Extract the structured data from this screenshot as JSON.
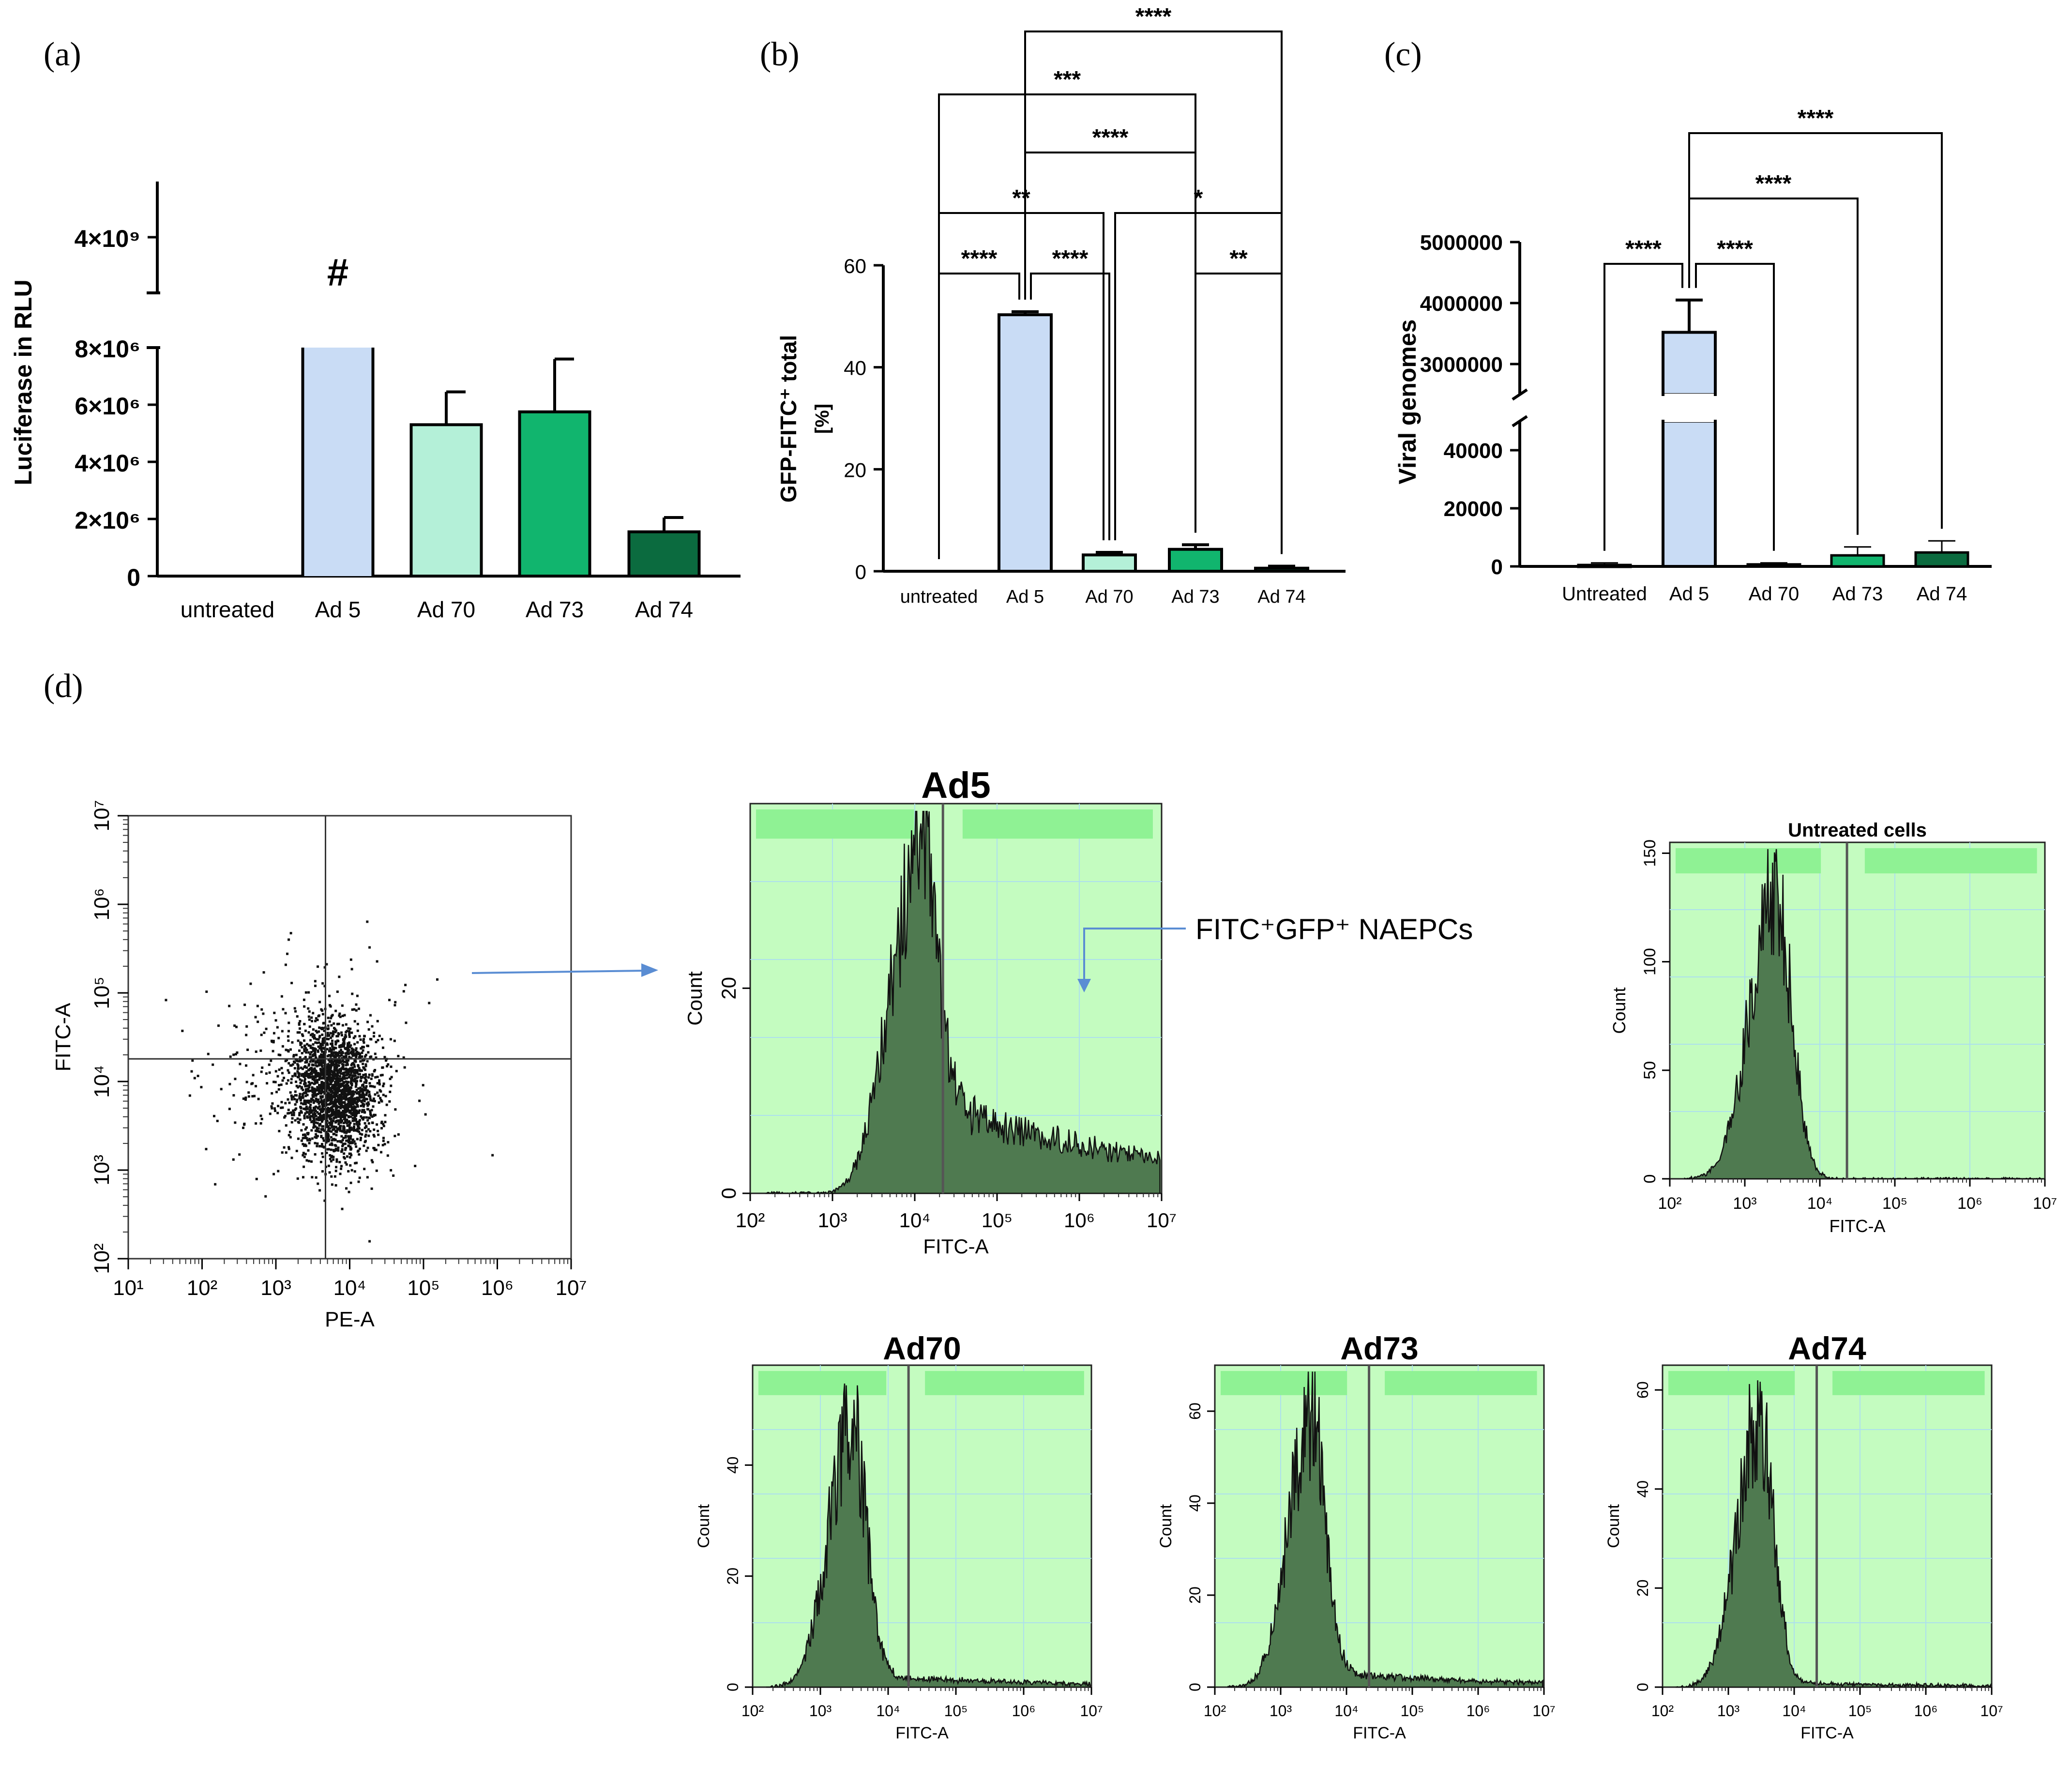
{
  "panel_labels": [
    "(a)",
    "(b)",
    "(c)",
    "(d)"
  ],
  "colors": {
    "untreated": "#e8776b",
    "ad5": "#c9dcf5",
    "ad70": "#b4f0d8",
    "ad73": "#11b56e",
    "ad74": "#0b6b3f",
    "hist_bg": "#c4fcc0",
    "hist_band": "#8ff294",
    "hist_fill": "#4f7a50",
    "grid": "#ade0ec",
    "annot_arrow": "#5a8dd3"
  },
  "chart_data": [
    {
      "id": "a",
      "type": "bar",
      "categories": [
        "untreated",
        "Ad 5",
        "Ad 70",
        "Ad 73",
        "Ad 74"
      ],
      "values": [
        0,
        4000000000,
        5300000,
        5750000,
        1550000
      ],
      "errors": [
        0,
        0,
        1150000,
        1850000,
        500000
      ],
      "ylabel": "Luciferase in RLU",
      "lower_ylim": [
        0,
        8000000
      ],
      "upper_ylim": [
        3800000000,
        4200000000
      ],
      "lower_ticks": [
        {
          "v": 0,
          "l": "0"
        },
        {
          "v": 2000000,
          "l": "2×10⁶"
        },
        {
          "v": 4000000,
          "l": "4×10⁶"
        },
        {
          "v": 6000000,
          "l": "6×10⁶"
        },
        {
          "v": 8000000,
          "l": "8×10⁶"
        }
      ],
      "upper_ticks": [
        {
          "v": 4000000000,
          "l": "4×10⁹"
        }
      ],
      "annotations": [
        {
          "category": "Ad 5",
          "text": "#"
        }
      ]
    },
    {
      "id": "b",
      "type": "bar",
      "categories": [
        "untreated",
        "Ad 5",
        "Ad 70",
        "Ad 73",
        "Ad 74"
      ],
      "values": [
        0,
        50.3,
        3.2,
        4.3,
        0.6
      ],
      "errors": [
        0,
        0.6,
        0.5,
        0.9,
        0.4
      ],
      "ylabel_line1": "GFP-FITC⁺ total",
      "ylabel_line2": "[%]",
      "ylim": [
        0,
        60
      ],
      "yticks": [
        0,
        20,
        40,
        60
      ],
      "significance": [
        {
          "from": "untreated",
          "to": "Ad 5",
          "text": "****"
        },
        {
          "from": "Ad 5",
          "to": "Ad 70",
          "text": "****"
        },
        {
          "from": "Ad 73",
          "to": "Ad 74",
          "text": "**"
        },
        {
          "from": "untreated",
          "to": "Ad 70",
          "text": "**"
        },
        {
          "from": "Ad 70",
          "to": "Ad 74",
          "text": "*"
        },
        {
          "from": "Ad 5",
          "to": "Ad 73",
          "text": "****"
        },
        {
          "from": "untreated",
          "to": "Ad 73",
          "text": "***"
        },
        {
          "from": "Ad 5",
          "to": "Ad 74",
          "text": "****"
        }
      ]
    },
    {
      "id": "c",
      "type": "bar",
      "categories": [
        "Untreated",
        "Ad 5",
        "Ad 70",
        "Ad 73",
        "Ad 74"
      ],
      "values": [
        500,
        3520000,
        700,
        3800,
        4800
      ],
      "errors": [
        700,
        530000,
        500,
        2900,
        4000
      ],
      "ylabel": "Viral genomes",
      "lower_ylim": [
        0,
        50000
      ],
      "upper_ylim": [
        2500000,
        5000000
      ],
      "lower_ticks": [
        0,
        20000,
        40000
      ],
      "upper_ticks": [
        3000000,
        4000000,
        5000000
      ],
      "significance": [
        {
          "from": "Untreated",
          "to": "Ad 5",
          "text": "****"
        },
        {
          "from": "Ad 5",
          "to": "Ad 70",
          "text": "****"
        },
        {
          "from": "Ad 5",
          "to": "Ad 73",
          "text": "****"
        },
        {
          "from": "Ad 5",
          "to": "Ad 74",
          "text": "****"
        }
      ]
    },
    {
      "id": "d-scatter",
      "type": "scatter",
      "xlabel": "PE-A",
      "ylabel": "FITC-A",
      "xscale": "log",
      "yscale": "log",
      "xlim": [
        10,
        10000000
      ],
      "ylim": [
        100,
        10000000
      ],
      "xticks": [
        {
          "v": 1,
          "l": "10¹"
        },
        {
          "v": 2,
          "l": "10²"
        },
        {
          "v": 3,
          "l": "10³"
        },
        {
          "v": 4,
          "l": "10⁴"
        },
        {
          "v": 5,
          "l": "10⁵"
        },
        {
          "v": 6,
          "l": "10⁶"
        },
        {
          "v": 7,
          "l": "10⁷"
        }
      ],
      "yticks": [
        {
          "v": 2,
          "l": "10²"
        },
        {
          "v": 3,
          "l": "10³"
        },
        {
          "v": 4,
          "l": "10⁴"
        },
        {
          "v": 5,
          "l": "10⁵"
        },
        {
          "v": 6,
          "l": "10⁶"
        },
        {
          "v": 7,
          "l": "10⁷"
        }
      ],
      "quadrant_gate": {
        "x": 4700,
        "y": 18000
      },
      "population": {
        "center_x": 6000,
        "center_y": 8000,
        "points": 2400
      }
    },
    {
      "id": "d-hist",
      "type": "area",
      "xlabel": "FITC-A",
      "ylabel": "Count",
      "xscale": "log",
      "xticks": [
        {
          "v": 2,
          "l": "10²"
        },
        {
          "v": 3,
          "l": "10³"
        },
        {
          "v": 4,
          "l": "10⁴"
        },
        {
          "v": 5,
          "l": "10⁵"
        },
        {
          "v": 6,
          "l": "10⁶"
        },
        {
          "v": 7,
          "l": "10⁷"
        }
      ],
      "annotation": "FITC⁺GFP⁺ NAEPCs",
      "plots": [
        {
          "title": "Ad5",
          "ylim": [
            0,
            38
          ],
          "yticks": [
            0,
            20
          ],
          "gate": 22000,
          "peak_x": 10000,
          "peak_y": 30,
          "tail": 0.32
        },
        {
          "title": "Untreated cells",
          "ylim": [
            0,
            155
          ],
          "yticks": [
            0,
            50,
            100,
            150
          ],
          "gate": 23000,
          "peak_x": 2500,
          "peak_y": 130,
          "tail": 0.0
        },
        {
          "title": "Ad70",
          "ylim": [
            0,
            58
          ],
          "yticks": [
            0,
            20,
            40
          ],
          "gate": 20000,
          "peak_x": 2800,
          "peak_y": 46,
          "tail": 0.05
        },
        {
          "title": "Ad73",
          "ylim": [
            0,
            70
          ],
          "yticks": [
            0,
            20,
            40,
            60
          ],
          "gate": 22000,
          "peak_x": 2800,
          "peak_y": 58,
          "tail": 0.06
        },
        {
          "title": "Ad74",
          "ylim": [
            0,
            65
          ],
          "yticks": [
            0,
            20,
            40,
            60
          ],
          "gate": 22000,
          "peak_x": 2900,
          "peak_y": 54,
          "tail": 0.02
        }
      ]
    }
  ]
}
